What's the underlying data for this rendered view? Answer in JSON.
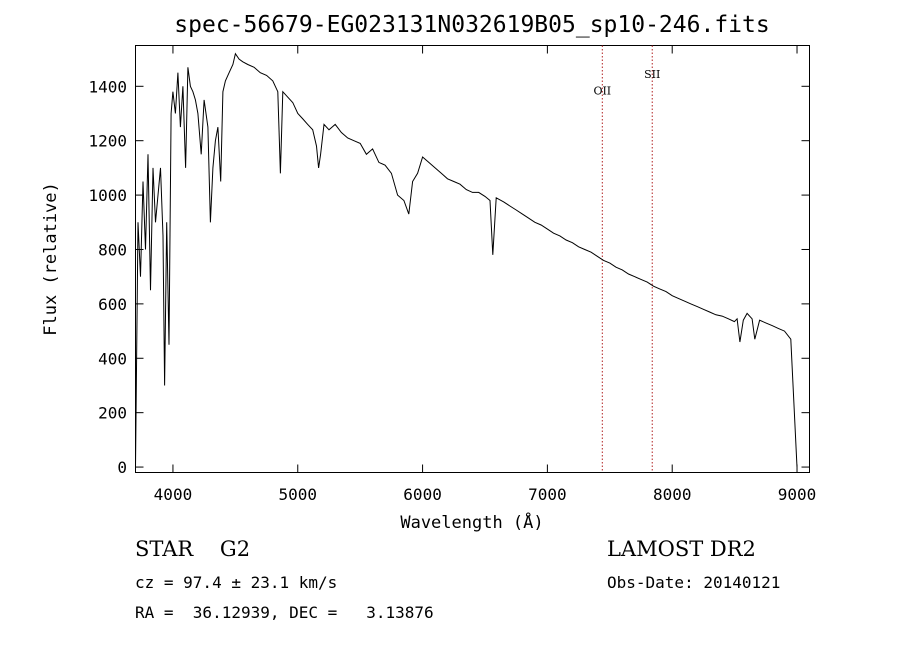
{
  "chart_data": {
    "type": "line",
    "title": "spec-56679-EG023131N032619B05_sp10-246.fits",
    "xlabel": "Wavelength (Å)",
    "ylabel": "Flux (relative)",
    "xlim": [
      3700,
      9100
    ],
    "ylim": [
      -20,
      1550
    ],
    "xticks": [
      4000,
      5000,
      6000,
      7000,
      8000,
      9000
    ],
    "yticks": [
      0,
      200,
      400,
      600,
      800,
      1000,
      1200,
      1400
    ],
    "grid": false,
    "series": [
      {
        "x": [
          3700,
          3720,
          3740,
          3760,
          3780,
          3800,
          3820,
          3840,
          3860,
          3880,
          3900,
          3920,
          3933,
          3950,
          3968,
          3985,
          4000,
          4020,
          4040,
          4060,
          4080,
          4101,
          4120,
          4140,
          4160,
          4180,
          4200,
          4226,
          4250,
          4280,
          4300,
          4320,
          4340,
          4360,
          4383,
          4400,
          4420,
          4450,
          4480,
          4500,
          4530,
          4560,
          4600,
          4650,
          4700,
          4750,
          4800,
          4840,
          4861,
          4880,
          4920,
          4960,
          5000,
          5040,
          5080,
          5120,
          5150,
          5167,
          5183,
          5210,
          5250,
          5300,
          5350,
          5400,
          5450,
          5500,
          5550,
          5600,
          5650,
          5700,
          5750,
          5800,
          5850,
          5890,
          5920,
          5960,
          6000,
          6050,
          6100,
          6150,
          6200,
          6250,
          6300,
          6350,
          6400,
          6450,
          6500,
          6540,
          6563,
          6590,
          6650,
          6700,
          6750,
          6800,
          6850,
          6900,
          6950,
          7000,
          7050,
          7100,
          7150,
          7200,
          7250,
          7300,
          7350,
          7400,
          7450,
          7500,
          7550,
          7600,
          7650,
          7700,
          7750,
          7800,
          7850,
          7900,
          7950,
          8000,
          8050,
          8100,
          8150,
          8200,
          8250,
          8300,
          8350,
          8400,
          8450,
          8498,
          8520,
          8542,
          8570,
          8600,
          8640,
          8662,
          8700,
          8750,
          8800,
          8850,
          8900,
          8950,
          9000
        ],
        "y": [
          0,
          900,
          700,
          1050,
          800,
          1150,
          650,
          1100,
          900,
          1000,
          1100,
          850,
          300,
          900,
          450,
          1300,
          1380,
          1300,
          1450,
          1250,
          1400,
          1100,
          1470,
          1400,
          1380,
          1350,
          1300,
          1150,
          1350,
          1250,
          900,
          1100,
          1200,
          1250,
          1050,
          1380,
          1420,
          1450,
          1480,
          1520,
          1500,
          1490,
          1480,
          1470,
          1450,
          1440,
          1420,
          1380,
          1080,
          1380,
          1360,
          1340,
          1300,
          1280,
          1260,
          1240,
          1180,
          1100,
          1150,
          1260,
          1240,
          1260,
          1230,
          1210,
          1200,
          1190,
          1150,
          1170,
          1120,
          1110,
          1080,
          1000,
          980,
          930,
          1050,
          1080,
          1140,
          1120,
          1100,
          1080,
          1060,
          1050,
          1040,
          1020,
          1010,
          1010,
          995,
          980,
          780,
          990,
          975,
          960,
          945,
          930,
          915,
          900,
          890,
          875,
          860,
          850,
          835,
          825,
          810,
          800,
          790,
          775,
          760,
          750,
          735,
          725,
          710,
          700,
          690,
          680,
          665,
          655,
          645,
          630,
          620,
          610,
          600,
          590,
          580,
          570,
          560,
          555,
          545,
          535,
          545,
          460,
          540,
          565,
          545,
          470,
          540,
          530,
          520,
          510,
          500,
          470,
          0
        ]
      }
    ],
    "annotations": [
      {
        "text": "OII",
        "x": 7440,
        "label_y": 1370
      },
      {
        "text": "SII",
        "x": 7840,
        "label_y": 1430
      }
    ]
  },
  "info": {
    "classification": "STAR    G2",
    "survey": "LAMOST DR2",
    "redshift_line": "cz = 97.4 ± 23.1 km/s",
    "obs_date": "Obs-Date: 20140121",
    "coords": "RA =  36.12939, DEC =   3.13876"
  }
}
